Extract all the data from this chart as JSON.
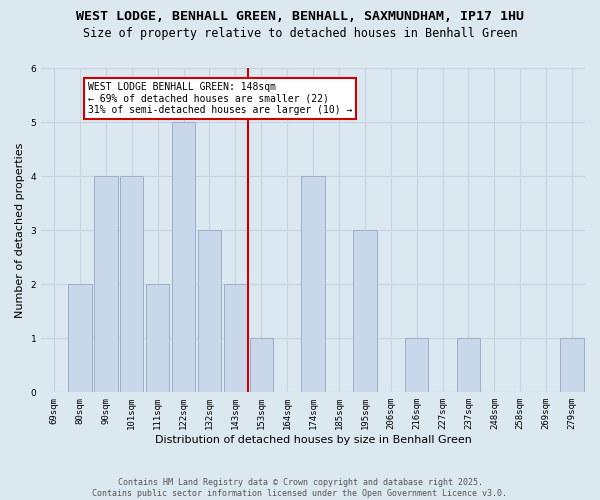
{
  "title_line1": "WEST LODGE, BENHALL GREEN, BENHALL, SAXMUNDHAM, IP17 1HU",
  "title_line2": "Size of property relative to detached houses in Benhall Green",
  "xlabel": "Distribution of detached houses by size in Benhall Green",
  "ylabel": "Number of detached properties",
  "categories": [
    "69sqm",
    "80sqm",
    "90sqm",
    "101sqm",
    "111sqm",
    "122sqm",
    "132sqm",
    "143sqm",
    "153sqm",
    "164sqm",
    "174sqm",
    "185sqm",
    "195sqm",
    "206sqm",
    "216sqm",
    "227sqm",
    "237sqm",
    "248sqm",
    "258sqm",
    "269sqm",
    "279sqm"
  ],
  "values": [
    0,
    2,
    4,
    4,
    2,
    5,
    3,
    2,
    1,
    0,
    4,
    0,
    3,
    0,
    1,
    0,
    1,
    0,
    0,
    0,
    1
  ],
  "bar_color": "#c8d8ea",
  "bar_edge_color": "#9ab0c8",
  "ref_line_index": 7.5,
  "annotation_text_line1": "WEST LODGE BENHALL GREEN: 148sqm",
  "annotation_text_line2": "← 69% of detached houses are smaller (22)",
  "annotation_text_line3": "31% of semi-detached houses are larger (10) →",
  "annotation_box_facecolor": "#ffffff",
  "annotation_box_edgecolor": "#cc0000",
  "ylim": [
    0,
    6
  ],
  "yticks": [
    0,
    1,
    2,
    3,
    4,
    5,
    6
  ],
  "grid_color": "#c8d4e0",
  "bg_color": "#dce8f0",
  "fig_bg_color": "#dce8f0",
  "footer_text": "Contains HM Land Registry data © Crown copyright and database right 2025.\nContains public sector information licensed under the Open Government Licence v3.0.",
  "title1_fontsize": 9.5,
  "title2_fontsize": 8.5,
  "ylabel_fontsize": 8,
  "xlabel_fontsize": 8,
  "tick_fontsize": 6.5,
  "annot_fontsize": 7,
  "footer_fontsize": 6
}
